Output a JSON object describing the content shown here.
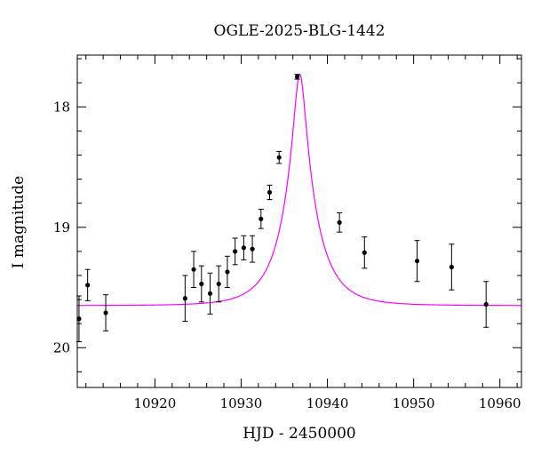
{
  "chart_data": {
    "type": "scatter",
    "title": "OGLE-2025-BLG-1442",
    "xlabel": "HJD - 2450000",
    "ylabel": "I magnitude",
    "xlim": [
      10911,
      10962.5
    ],
    "ylim": [
      20.33,
      17.57
    ],
    "y_inverted": true,
    "grid": false,
    "x_major_ticks": [
      10920,
      10930,
      10940,
      10950,
      10960
    ],
    "x_tick_labels": [
      "10920",
      "10930",
      "10940",
      "10950",
      "10960"
    ],
    "x_minor_step": 2,
    "y_major_ticks": [
      18,
      19,
      20
    ],
    "y_tick_labels": [
      "18",
      "19",
      "20"
    ],
    "y_minor_step": 0.2,
    "model_color": "#ff00ff",
    "point_color": "#000000",
    "model": {
      "name": "",
      "baseline_mag": 19.65,
      "peak_mag": 17.73,
      "t0": 10936.8,
      "tE": 3.8
    },
    "series": [
      {
        "name": "",
        "x": [
          10911.2,
          10912.2,
          10914.3,
          10923.5,
          10924.5,
          10925.4,
          10926.4,
          10927.4,
          10928.4,
          10929.3,
          10930.3,
          10931.3,
          10932.3,
          10933.3,
          10934.4,
          10936.5,
          10941.4,
          10944.3,
          10950.4,
          10954.4,
          10958.4
        ],
        "y": [
          19.76,
          19.48,
          19.71,
          19.59,
          19.35,
          19.47,
          19.55,
          19.47,
          19.37,
          19.2,
          19.17,
          19.18,
          18.93,
          18.71,
          18.42,
          17.75,
          18.96,
          19.21,
          19.28,
          19.33,
          19.64
        ],
        "err": [
          0.19,
          0.13,
          0.15,
          0.19,
          0.15,
          0.15,
          0.17,
          0.15,
          0.13,
          0.11,
          0.1,
          0.11,
          0.08,
          0.06,
          0.05,
          0.02,
          0.08,
          0.13,
          0.17,
          0.19,
          0.19
        ]
      }
    ]
  }
}
